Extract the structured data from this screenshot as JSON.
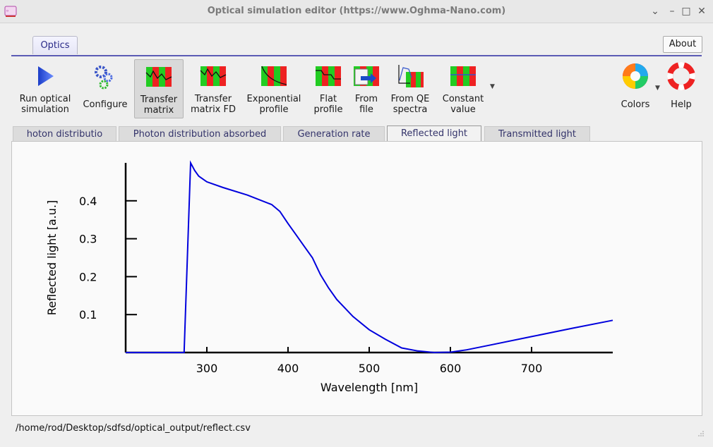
{
  "window": {
    "title": "Optical simulation editor (https://www.Oghma-Nano.com)"
  },
  "ribbon": {
    "tab_label": "Optics",
    "about_label": "About"
  },
  "toolbar": {
    "items": [
      {
        "label_l1": "Run optical",
        "label_l2": "simulation",
        "icon": "play-icon"
      },
      {
        "label_l1": "Configure",
        "label_l2": "",
        "icon": "gears-icon"
      },
      {
        "label_l1": "Transfer",
        "label_l2": "matrix",
        "icon": "transfer-matrix-icon"
      },
      {
        "label_l1": "Transfer",
        "label_l2": "matrix FD",
        "icon": "transfer-matrix-fd-icon"
      },
      {
        "label_l1": "Exponential",
        "label_l2": "profile",
        "icon": "exponential-profile-icon"
      },
      {
        "label_l1": "Flat",
        "label_l2": "profile",
        "icon": "flat-profile-icon"
      },
      {
        "label_l1": "From",
        "label_l2": "file",
        "icon": "from-file-icon"
      },
      {
        "label_l1": "From QE",
        "label_l2": "spectra",
        "icon": "qe-spectra-icon"
      },
      {
        "label_l1": "Constant",
        "label_l2": "value",
        "icon": "constant-value-icon"
      }
    ],
    "colors_label": "Colors",
    "help_label": "Help"
  },
  "tabs": [
    {
      "label": "hoton distributio"
    },
    {
      "label": "Photon distribution absorbed"
    },
    {
      "label": "Generation rate"
    },
    {
      "label": "Reflected light"
    },
    {
      "label": "Transmitted light"
    }
  ],
  "status": {
    "path": "/home/rod/Desktop/sdfsd/optical_output/reflect.csv"
  },
  "chart_data": {
    "type": "line",
    "xlabel": "Wavelength [nm]",
    "ylabel": "Reflected light [a.u.]",
    "xlim": [
      200,
      800
    ],
    "ylim": [
      0,
      0.5
    ],
    "xticks": [
      300,
      400,
      500,
      600,
      700
    ],
    "yticks": [
      0.1,
      0.2,
      0.3,
      0.4
    ],
    "line_color": "#0000dd",
    "series": [
      {
        "x": [
          200,
          250,
          272,
          276,
          280,
          285,
          290,
          300,
          320,
          350,
          380,
          390,
          400,
          410,
          420,
          430,
          440,
          450,
          460,
          480,
          500,
          520,
          540,
          560,
          580,
          600,
          620,
          650,
          700,
          750,
          800
        ],
        "y": [
          0,
          0,
          0,
          0.25,
          0.5,
          0.48,
          0.465,
          0.45,
          0.435,
          0.415,
          0.39,
          0.372,
          0.34,
          0.31,
          0.28,
          0.25,
          0.205,
          0.17,
          0.14,
          0.095,
          0.06,
          0.035,
          0.012,
          0.004,
          0,
          0.001,
          0.007,
          0.02,
          0.042,
          0.064,
          0.085
        ]
      }
    ]
  }
}
